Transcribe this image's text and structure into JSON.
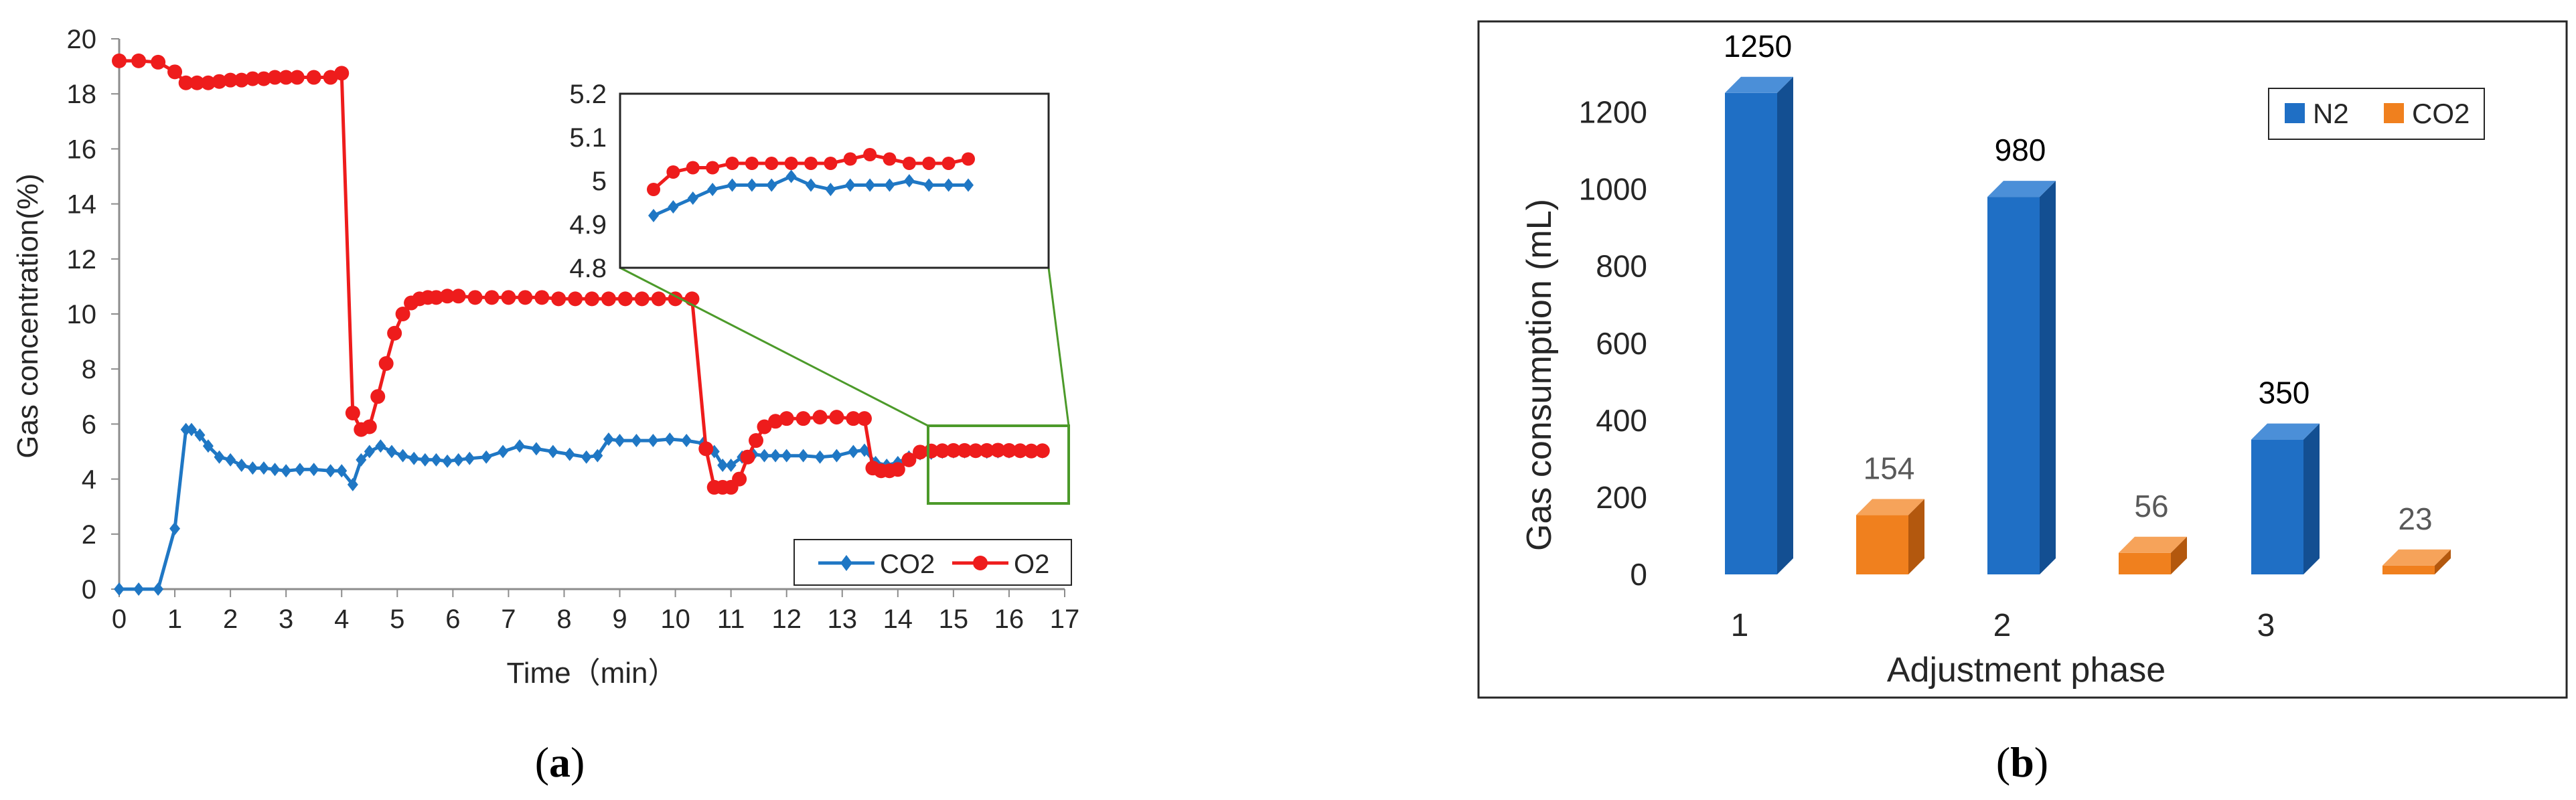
{
  "panels": {
    "a": {
      "caption_open": "(",
      "caption_letter": "a",
      "caption_close": ")"
    },
    "b": {
      "caption_open": "(",
      "caption_letter": "b",
      "caption_close": ")"
    }
  },
  "colors": {
    "co2_line": "#1f77c4",
    "o2_line": "#ee1c1c",
    "zoom_box": "#4c9a2a",
    "n2_bar": "#1f6fc5",
    "co2_bar": "#f0801e",
    "text": "#262626",
    "label_gray": "#595959"
  },
  "chart_data": [
    {
      "type": "line",
      "panel": "a",
      "xlabel": "Time（min）",
      "ylabel": "Gas  concentration(%)",
      "xlim": [
        0,
        17
      ],
      "ylim": [
        0,
        20
      ],
      "xticks": [
        "0",
        "1",
        "2",
        "3",
        "4",
        "5",
        "6",
        "7",
        "8",
        "9",
        "10",
        "11",
        "12",
        "13",
        "14",
        "15",
        "16",
        "17"
      ],
      "yticks": [
        "0",
        "2",
        "4",
        "6",
        "8",
        "10",
        "12",
        "14",
        "16",
        "18",
        "20"
      ],
      "grid": false,
      "legend_position": "bottom-right",
      "series": [
        {
          "name": "CO2",
          "marker": "diamond",
          "x": [
            0,
            0.35,
            0.7,
            1.0,
            1.2,
            1.3,
            1.45,
            1.6,
            1.8,
            2.0,
            2.2,
            2.4,
            2.6,
            2.8,
            3.0,
            3.25,
            3.5,
            3.8,
            4.0,
            4.2,
            4.35,
            4.5,
            4.7,
            4.9,
            5.1,
            5.3,
            5.5,
            5.7,
            5.9,
            6.1,
            6.3,
            6.6,
            6.9,
            7.2,
            7.5,
            7.8,
            8.1,
            8.4,
            8.6,
            8.8,
            9.0,
            9.3,
            9.6,
            9.9,
            10.2,
            10.5,
            10.7,
            10.85,
            11.0,
            11.2,
            11.4,
            11.6,
            11.8,
            12.0,
            12.3,
            12.6,
            12.9,
            13.2,
            13.4,
            13.6,
            13.8,
            14.0,
            14.2,
            14.4,
            14.6,
            14.8,
            15.0,
            15.2,
            15.4,
            15.6,
            15.8,
            16.0,
            16.2,
            16.4,
            16.6
          ],
          "y": [
            0,
            0,
            0,
            2.2,
            5.8,
            5.8,
            5.6,
            5.2,
            4.8,
            4.7,
            4.5,
            4.4,
            4.4,
            4.35,
            4.3,
            4.35,
            4.35,
            4.3,
            4.3,
            3.8,
            4.7,
            5.0,
            5.2,
            5.0,
            4.85,
            4.75,
            4.7,
            4.7,
            4.65,
            4.7,
            4.75,
            4.8,
            5.0,
            5.2,
            5.1,
            5.0,
            4.9,
            4.8,
            4.85,
            5.45,
            5.4,
            5.4,
            5.4,
            5.45,
            5.4,
            5.3,
            5.0,
            4.5,
            4.5,
            4.8,
            4.9,
            4.85,
            4.85,
            4.85,
            4.85,
            4.8,
            4.85,
            5.0,
            5.05,
            4.6,
            4.5,
            4.6,
            4.8,
            4.92,
            4.94,
            4.98,
            4.99,
            4.99,
            5.01,
            4.98,
            4.99,
            4.99,
            5.0,
            4.99,
            4.99
          ]
        },
        {
          "name": "O2",
          "marker": "circle",
          "x": [
            0,
            0.35,
            0.7,
            1.0,
            1.2,
            1.4,
            1.6,
            1.8,
            2.0,
            2.2,
            2.4,
            2.6,
            2.8,
            3.0,
            3.2,
            3.5,
            3.8,
            4.0,
            4.2,
            4.35,
            4.5,
            4.65,
            4.8,
            4.95,
            5.1,
            5.25,
            5.4,
            5.55,
            5.7,
            5.9,
            6.1,
            6.4,
            6.7,
            7.0,
            7.3,
            7.6,
            7.9,
            8.2,
            8.5,
            8.8,
            9.1,
            9.4,
            9.7,
            10.0,
            10.3,
            10.55,
            10.7,
            10.85,
            11.0,
            11.15,
            11.3,
            11.45,
            11.6,
            11.8,
            12.0,
            12.3,
            12.6,
            12.9,
            13.2,
            13.4,
            13.55,
            13.7,
            13.85,
            14.0,
            14.2,
            14.4,
            14.6,
            14.8,
            15.0,
            15.2,
            15.4,
            15.6,
            15.8,
            16.0,
            16.2,
            16.4,
            16.6
          ],
          "y": [
            19.2,
            19.2,
            19.15,
            18.8,
            18.4,
            18.4,
            18.4,
            18.45,
            18.5,
            18.5,
            18.55,
            18.55,
            18.6,
            18.6,
            18.6,
            18.6,
            18.6,
            18.75,
            6.4,
            5.8,
            5.9,
            7.0,
            8.2,
            9.3,
            10.0,
            10.4,
            10.55,
            10.6,
            10.6,
            10.65,
            10.65,
            10.6,
            10.6,
            10.6,
            10.6,
            10.6,
            10.55,
            10.55,
            10.55,
            10.55,
            10.55,
            10.55,
            10.55,
            10.55,
            10.55,
            5.1,
            3.7,
            3.7,
            3.7,
            4.0,
            4.8,
            5.4,
            5.9,
            6.1,
            6.2,
            6.2,
            6.25,
            6.25,
            6.2,
            6.2,
            4.4,
            4.3,
            4.3,
            4.35,
            4.7,
            4.98,
            5.02,
            5.03,
            5.04,
            5.04,
            5.03,
            5.04,
            5.05,
            5.04,
            5.03,
            5.02,
            5.03
          ]
        }
      ],
      "inset": {
        "yticks": [
          "5.2",
          "5.1",
          "5",
          "4.9",
          "4.8"
        ],
        "ylim": [
          4.8,
          5.2
        ],
        "series": [
          {
            "name": "CO2",
            "marker": "diamond",
            "y": [
              4.92,
              4.94,
              4.96,
              4.98,
              4.99,
              4.99,
              4.99,
              5.01,
              4.99,
              4.98,
              4.99,
              4.99,
              4.99,
              5.0,
              4.99,
              4.99,
              4.99
            ]
          },
          {
            "name": "O2",
            "marker": "circle",
            "y": [
              4.98,
              5.02,
              5.03,
              5.03,
              5.04,
              5.04,
              5.04,
              5.04,
              5.04,
              5.04,
              5.05,
              5.06,
              5.05,
              5.04,
              5.04,
              5.04,
              5.05
            ]
          }
        ]
      }
    },
    {
      "type": "bar",
      "panel": "b",
      "style": "3d",
      "xlabel": "Adjustment phase",
      "ylabel": "Gas consumption (mL)",
      "categories": [
        "1",
        "2",
        "3"
      ],
      "ylim": [
        0,
        1300
      ],
      "yticks": [
        "0",
        "200",
        "400",
        "600",
        "800",
        "1000",
        "1200"
      ],
      "legend_position": "top-right",
      "series": [
        {
          "name": "N2",
          "values": [
            1250,
            980,
            350
          ],
          "labels": [
            "1250",
            "980",
            "350"
          ]
        },
        {
          "name": "CO2",
          "values": [
            154,
            56,
            23
          ],
          "labels": [
            "154",
            "56",
            "23"
          ]
        }
      ]
    }
  ]
}
